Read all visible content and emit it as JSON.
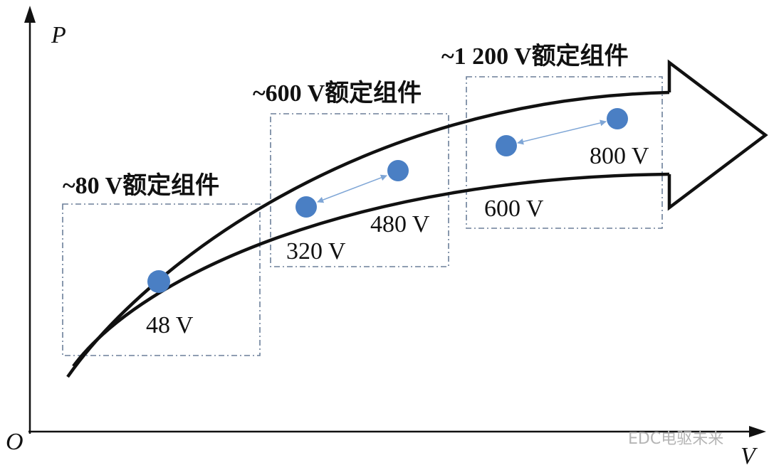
{
  "axes": {
    "y_label": "P",
    "x_label": "V",
    "origin": "O"
  },
  "groups": [
    {
      "label": "~80 V额定组件",
      "points": [
        "48 V"
      ]
    },
    {
      "label": "~600 V额定组件",
      "points": [
        "320 V",
        "480 V"
      ]
    },
    {
      "label": "~1 200 V额定组件",
      "points": [
        "600 V",
        "800 V"
      ]
    }
  ],
  "watermark": "EDC电驱未来"
}
